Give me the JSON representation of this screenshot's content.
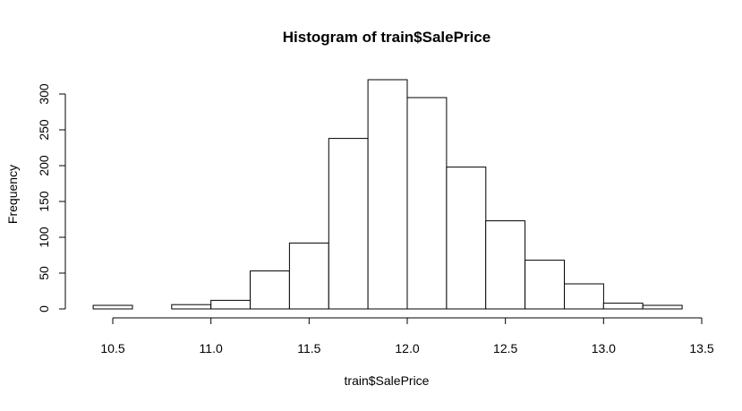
{
  "chart_data": {
    "type": "bar",
    "subtype": "histogram",
    "title": "Histogram of train$SalePrice",
    "xlabel": "train$SalePrice",
    "ylabel": "Frequency",
    "xlim": [
      10.4,
      13.5
    ],
    "ylim": [
      0,
      320
    ],
    "x_ticks": [
      "10.5",
      "11.0",
      "11.5",
      "12.0",
      "12.5",
      "13.0",
      "13.5"
    ],
    "y_ticks": [
      "0",
      "50",
      "100",
      "150",
      "200",
      "250",
      "300"
    ],
    "bins": [
      {
        "start": 10.4,
        "end": 10.6,
        "count": 5
      },
      {
        "start": 10.6,
        "end": 10.8,
        "count": 0
      },
      {
        "start": 10.8,
        "end": 11.0,
        "count": 6
      },
      {
        "start": 11.0,
        "end": 11.2,
        "count": 12
      },
      {
        "start": 11.2,
        "end": 11.4,
        "count": 53
      },
      {
        "start": 11.4,
        "end": 11.6,
        "count": 92
      },
      {
        "start": 11.6,
        "end": 11.8,
        "count": 238
      },
      {
        "start": 11.8,
        "end": 12.0,
        "count": 320
      },
      {
        "start": 12.0,
        "end": 12.2,
        "count": 295
      },
      {
        "start": 12.2,
        "end": 12.4,
        "count": 198
      },
      {
        "start": 12.4,
        "end": 12.6,
        "count": 123
      },
      {
        "start": 12.6,
        "end": 12.8,
        "count": 68
      },
      {
        "start": 12.8,
        "end": 13.0,
        "count": 35
      },
      {
        "start": 13.0,
        "end": 13.2,
        "count": 8
      },
      {
        "start": 13.2,
        "end": 13.4,
        "count": 5
      }
    ],
    "bar_fill": "#ffffff",
    "bar_stroke": "#000000",
    "grid": false,
    "legend": "none"
  }
}
